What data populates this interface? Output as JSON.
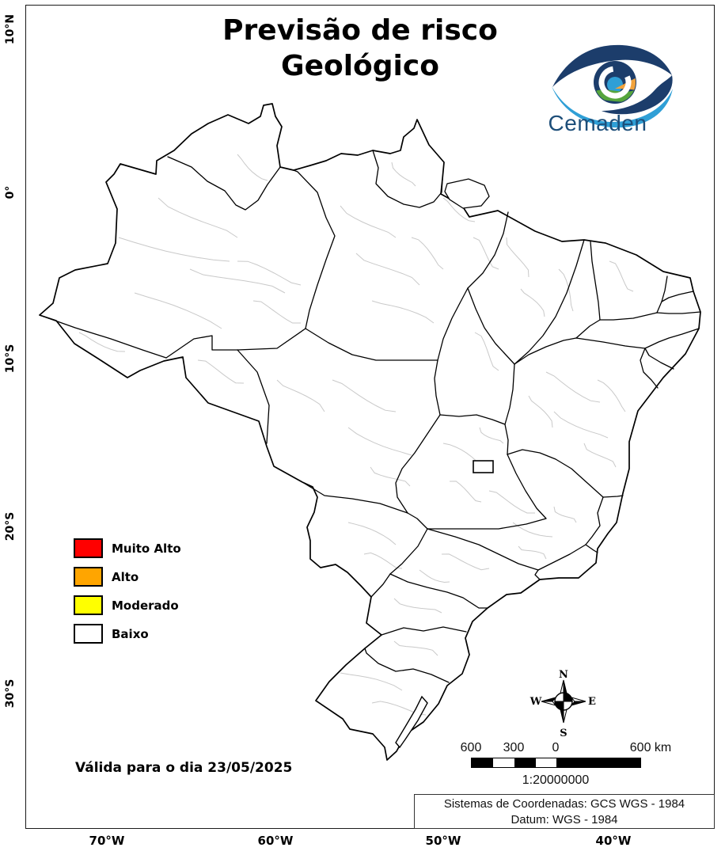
{
  "title": {
    "line1": "Previsão de risco",
    "line2": "Geológico"
  },
  "logo": {
    "wordmark": "Cemaden"
  },
  "legend": {
    "items": [
      {
        "label": "Muito Alto",
        "color": "#ff0000"
      },
      {
        "label": "Alto",
        "color": "#ffa500"
      },
      {
        "label": "Moderado",
        "color": "#ffff00"
      },
      {
        "label": "Baixo",
        "color": "#ffffff"
      }
    ]
  },
  "validity": {
    "text": "Válida para o dia 23/05/2025"
  },
  "compass": {
    "n": "N",
    "s": "S",
    "e": "E",
    "w": "W"
  },
  "scale_bar": {
    "tick_labels": [
      "600",
      "300",
      "0",
      "600 km"
    ],
    "ratio": "1:20000000"
  },
  "coordinate_system": {
    "line1": "Sistemas de Coordenadas: GCS WGS - 1984",
    "line2": "Datum: WGS - 1984"
  },
  "axes": {
    "latitude_labels": [
      "10°N",
      "0°",
      "10°S",
      "20°S",
      "30°S"
    ],
    "longitude_labels": [
      "70°W",
      "60°W",
      "50°W",
      "40°W"
    ]
  },
  "map": {
    "region": "Brasil",
    "state_border_color": "#000000",
    "municipal_border_color": "#c9c9c9",
    "fill_color": "#ffffff"
  }
}
